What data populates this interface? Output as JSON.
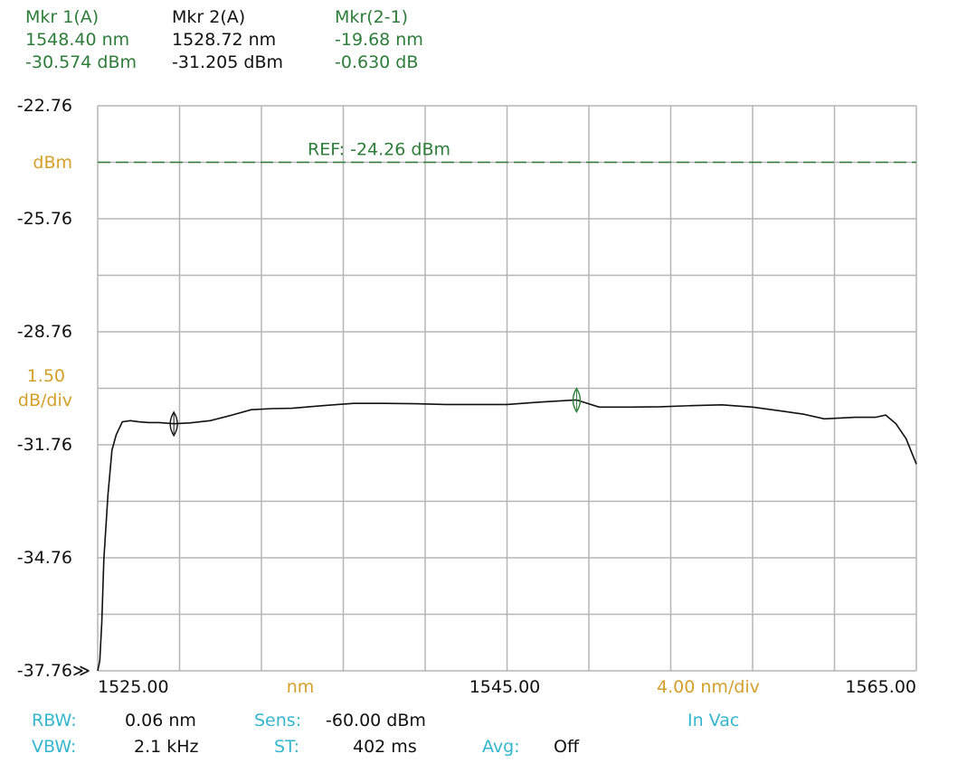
{
  "markers": {
    "mkr1": {
      "title": "Mkr 1(A)",
      "wavelength": "1548.40 nm",
      "power": "-30.574 dBm"
    },
    "mkr2": {
      "title": "Mkr 2(A)",
      "wavelength": "1528.72 nm",
      "power": "-31.205 dBm"
    },
    "delta": {
      "title": "Mkr(2-1)",
      "wavelength": "-19.68 nm",
      "power": "-0.630 dB"
    }
  },
  "y_tick_labels": [
    "-22.76",
    "-25.76",
    "-28.76",
    "-31.76",
    "-34.76",
    "-37.76"
  ],
  "y_unit": "dBm",
  "scale": {
    "value": "1.50",
    "unit": "dB/div"
  },
  "x_tick_labels": {
    "left": "1525.00",
    "center": "1545.00",
    "right": "1565.00"
  },
  "x_unit": "nm",
  "x_scale": "4.00 nm/div",
  "bottom_marker": "≫",
  "settings": {
    "rbw_label": "RBW:",
    "rbw_value": "0.06 nm",
    "sens_label": "Sens:",
    "sens_value": "-60.00 dBm",
    "vacuum": "In Vac",
    "vbw_label": "VBW:",
    "vbw_value": "2.1 kHz",
    "st_label": "ST:",
    "st_value": "402 ms",
    "avg_label": "Avg:",
    "avg_value": "Off"
  },
  "colors": {
    "grid": "#b5b5b5",
    "trace": "#111111",
    "reference": "#2e7d3a",
    "marker": "#2e7d3a",
    "label_orange": "#d4a02a",
    "label_cyan": "#35b6cf"
  },
  "chart_data": {
    "type": "line",
    "xlim": [
      1525.0,
      1565.0
    ],
    "ylim": [
      -37.76,
      -22.76
    ],
    "x_divisions": 10,
    "y_divisions": 10,
    "reference": {
      "label": "REF: -24.26 dBm",
      "value": -24.26
    },
    "markers": [
      {
        "x": 1548.4,
        "y": -30.574
      },
      {
        "x": 1528.72,
        "y": -31.205
      }
    ],
    "series": [
      {
        "x": [
          1525.0,
          1525.1,
          1525.2,
          1525.3,
          1525.5,
          1525.7,
          1525.9,
          1526.2,
          1526.6,
          1527.0,
          1527.5,
          1528.0,
          1528.72,
          1529.5,
          1530.5,
          1531.5,
          1532.5,
          1533.5,
          1534.5,
          1536.0,
          1537.5,
          1539.0,
          1540.5,
          1542.0,
          1543.5,
          1545.0,
          1546.5,
          1548.4,
          1549.5,
          1551.0,
          1552.5,
          1554.0,
          1555.5,
          1557.0,
          1558.5,
          1559.5,
          1560.5,
          1562.0,
          1563.0,
          1563.5,
          1564.0,
          1564.5,
          1565.0
        ],
        "y": [
          -37.76,
          -37.5,
          -36.5,
          -34.8,
          -33.1,
          -31.9,
          -31.5,
          -31.15,
          -31.12,
          -31.15,
          -31.17,
          -31.17,
          -31.2,
          -31.18,
          -31.12,
          -30.98,
          -30.83,
          -30.8,
          -30.79,
          -30.72,
          -30.66,
          -30.66,
          -30.67,
          -30.69,
          -30.69,
          -30.69,
          -30.63,
          -30.57,
          -30.76,
          -30.76,
          -30.75,
          -30.72,
          -30.7,
          -30.76,
          -30.87,
          -30.95,
          -31.07,
          -31.03,
          -31.03,
          -30.97,
          -31.2,
          -31.6,
          -32.27
        ]
      }
    ]
  }
}
